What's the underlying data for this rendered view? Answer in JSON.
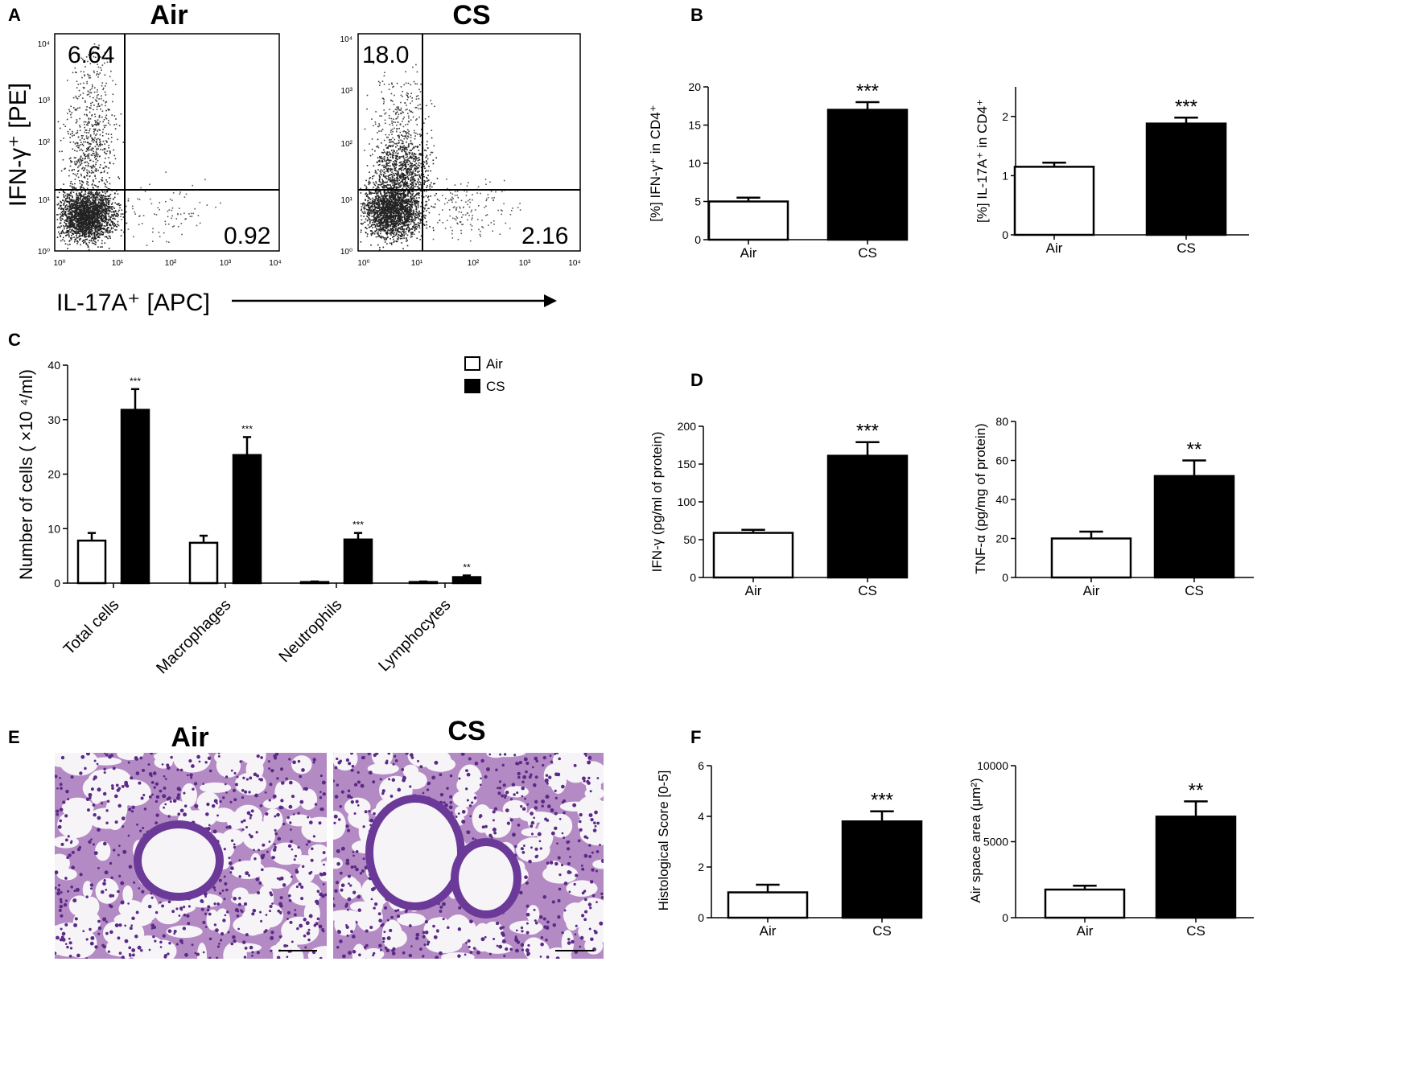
{
  "panels": {
    "A": {
      "letter": "A",
      "xlabel": "IL-17A⁺ [APC]",
      "ylabel": "IFN-γ⁺ [PE]",
      "ticks": [
        "10⁰",
        "10¹",
        "10²",
        "10³",
        "10⁴"
      ],
      "plots": [
        {
          "title": "Air",
          "upper_left": "6.64",
          "lower_right": "0.92"
        },
        {
          "title": "CS",
          "upper_left": "18.0",
          "lower_right": "2.16"
        }
      ]
    },
    "B": {
      "letter": "B"
    },
    "C": {
      "letter": "C"
    },
    "D": {
      "letter": "D"
    },
    "E": {
      "letter": "E",
      "images": [
        {
          "title": "Air"
        },
        {
          "title": "CS"
        }
      ]
    },
    "F": {
      "letter": "F"
    }
  },
  "colors": {
    "air": "#ffffff",
    "cs": "#000000",
    "stain": "#b48ac4",
    "nuclei": "#5a2a86"
  },
  "chart_data": [
    {
      "id": "B1",
      "type": "bar",
      "categories": [
        "Air",
        "CS"
      ],
      "values": [
        5.0,
        17.0
      ],
      "errors": [
        0.5,
        1.0
      ],
      "significance": [
        "",
        "***"
      ],
      "ylabel": "[%] IFN-γ⁺ in CD4⁺",
      "ylim": [
        0,
        20
      ],
      "yticks": [
        "0",
        "5",
        "10",
        "15",
        "20"
      ]
    },
    {
      "id": "B2",
      "type": "bar",
      "categories": [
        "Air",
        "CS"
      ],
      "values": [
        1.15,
        1.88
      ],
      "errors": [
        0.07,
        0.1
      ],
      "significance": [
        "",
        "***"
      ],
      "ylabel": "[%] IL-17A⁺ in CD4⁺",
      "ylim": [
        0,
        2.5
      ],
      "yticks": [
        "0",
        "1",
        "2"
      ]
    },
    {
      "id": "C",
      "type": "bar",
      "categories": [
        "Total cells",
        "Macrophages",
        "Neutrophils",
        "Lymphocytes"
      ],
      "series": [
        {
          "name": "Air",
          "values": [
            7.8,
            7.4,
            0.2,
            0.2
          ],
          "errors": [
            1.4,
            1.3,
            0.1,
            0.1
          ],
          "significance": [
            "",
            "",
            "",
            ""
          ]
        },
        {
          "name": "CS",
          "values": [
            31.8,
            23.5,
            8.0,
            1.1
          ],
          "errors": [
            3.8,
            3.3,
            1.2,
            0.3
          ],
          "significance": [
            "***",
            "***",
            "***",
            "**"
          ]
        }
      ],
      "ylabel": "Number of cells ( ×10 ⁴/ml)",
      "ylim": [
        0,
        40
      ],
      "yticks": [
        "0",
        "10",
        "20",
        "30",
        "40"
      ],
      "legend": "top-right"
    },
    {
      "id": "D1",
      "type": "bar",
      "categories": [
        "Air",
        "CS"
      ],
      "values": [
        59,
        161
      ],
      "errors": [
        4,
        18
      ],
      "significance": [
        "",
        "***"
      ],
      "ylabel": "IFN-γ (pg/ml of protein)",
      "ylim": [
        0,
        200
      ],
      "yticks": [
        "0",
        "50",
        "100",
        "150",
        "200"
      ]
    },
    {
      "id": "D2",
      "type": "bar",
      "categories": [
        "Air",
        "CS"
      ],
      "values": [
        20,
        52
      ],
      "errors": [
        3.5,
        8
      ],
      "significance": [
        "",
        "**"
      ],
      "ylabel": "TNF-α (pg/mg of protein)",
      "ylim": [
        0,
        80
      ],
      "yticks": [
        "0",
        "20",
        "40",
        "60",
        "80"
      ]
    },
    {
      "id": "F1",
      "type": "bar",
      "categories": [
        "Air",
        "CS"
      ],
      "values": [
        1.0,
        3.8
      ],
      "errors": [
        0.3,
        0.4
      ],
      "significance": [
        "",
        "***"
      ],
      "ylabel": "Histological Score [0-5]",
      "ylim": [
        0,
        6
      ],
      "yticks": [
        "0",
        "2",
        "4",
        "6"
      ]
    },
    {
      "id": "F2",
      "type": "bar",
      "categories": [
        "Air",
        "CS"
      ],
      "values": [
        1850,
        6650
      ],
      "errors": [
        250,
        1000
      ],
      "significance": [
        "",
        "**"
      ],
      "ylabel": "Air space area (μm²)",
      "ylim": [
        0,
        10000
      ],
      "yticks": [
        "0",
        "5000",
        "10000"
      ]
    }
  ]
}
